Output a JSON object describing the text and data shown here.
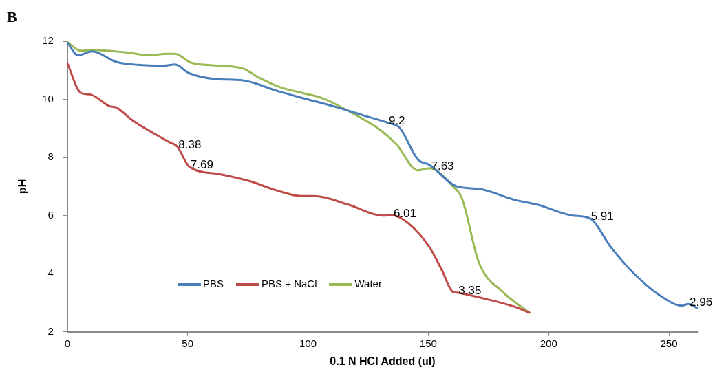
{
  "chart_data": {
    "type": "line",
    "title": "B",
    "xlabel": "0.1 N HCl Added (ul)",
    "ylabel": "pH",
    "xlim": [
      0,
      262
    ],
    "xticks": [
      0,
      50,
      100,
      150,
      200,
      250
    ],
    "ylim": [
      2,
      12
    ],
    "yticks": [
      2,
      4,
      6,
      8,
      10,
      12
    ],
    "legend": "bottom",
    "marker": "none",
    "line_style": "solid",
    "series": [
      {
        "name": "PBS",
        "color": "#4a7ebb",
        "x": [
          0,
          4.4,
          10.3,
          20.3,
          29,
          40,
          44.7,
          50.6,
          61.5,
          73,
          88,
          97.6,
          112.4,
          123,
          133,
          138,
          145.6,
          150.6,
          162,
          171,
          186,
          195.6,
          210,
          217,
          226,
          234,
          245.6,
          255.6,
          258,
          262
        ],
        "values": [
          11.95,
          11.52,
          11.65,
          11.29,
          11.19,
          11.16,
          11.2,
          10.9,
          10.7,
          10.65,
          10.27,
          10.05,
          9.72,
          9.45,
          9.2,
          9.03,
          7.94,
          7.74,
          7.0,
          6.92,
          6.54,
          6.37,
          6.0,
          5.91,
          4.9,
          4.13,
          3.29,
          2.9,
          2.96,
          2.81
        ]
      },
      {
        "name": "PBS + NaCl",
        "color": "#be4b48",
        "x": [
          0,
          5.6,
          9.4,
          17.4,
          20.3,
          27,
          35.9,
          42.6,
          45.6,
          50.6,
          63,
          76,
          86.8,
          97.6,
          102.6,
          117,
          131,
          135,
          141.8,
          150.6,
          155.6,
          160.3,
          162,
          164,
          171,
          186,
          192
        ],
        "values": [
          11.24,
          10.22,
          10.17,
          9.77,
          9.72,
          9.28,
          8.83,
          8.52,
          8.38,
          7.69,
          7.43,
          7.18,
          6.87,
          6.67,
          6.67,
          6.37,
          6.0,
          6.01,
          5.73,
          4.9,
          4.13,
          3.37,
          3.35,
          3.32,
          3.19,
          2.86,
          2.66
        ]
      },
      {
        "name": "Water",
        "color": "#98b954",
        "x": [
          0,
          5.6,
          10.3,
          24,
          34,
          41.8,
          44.7,
          51.5,
          63,
          73,
          80,
          88,
          97.6,
          105.6,
          117,
          130,
          136.8,
          145.6,
          150.6,
          160.3,
          164,
          171,
          181,
          192
        ],
        "values": [
          11.97,
          11.67,
          11.7,
          11.62,
          11.52,
          11.57,
          11.57,
          11.26,
          11.16,
          11.06,
          10.73,
          10.43,
          10.22,
          10.05,
          9.59,
          8.95,
          8.45,
          7.56,
          7.63,
          7.0,
          6.59,
          4.39,
          3.37,
          2.66
        ]
      }
    ],
    "annotations": [
      {
        "text": "8.38",
        "x": 45.6,
        "y": 8.38
      },
      {
        "text": "7.69",
        "x": 50.6,
        "y": 7.69
      },
      {
        "text": "6.01",
        "x": 135,
        "y": 6.01
      },
      {
        "text": "3.35",
        "x": 162,
        "y": 3.35
      },
      {
        "text": "9.2",
        "x": 133,
        "y": 9.2
      },
      {
        "text": "7.63",
        "x": 150.6,
        "y": 7.63
      },
      {
        "text": "5.91",
        "x": 217,
        "y": 5.91
      },
      {
        "text": "2.96",
        "x": 258,
        "y": 2.96
      }
    ]
  }
}
